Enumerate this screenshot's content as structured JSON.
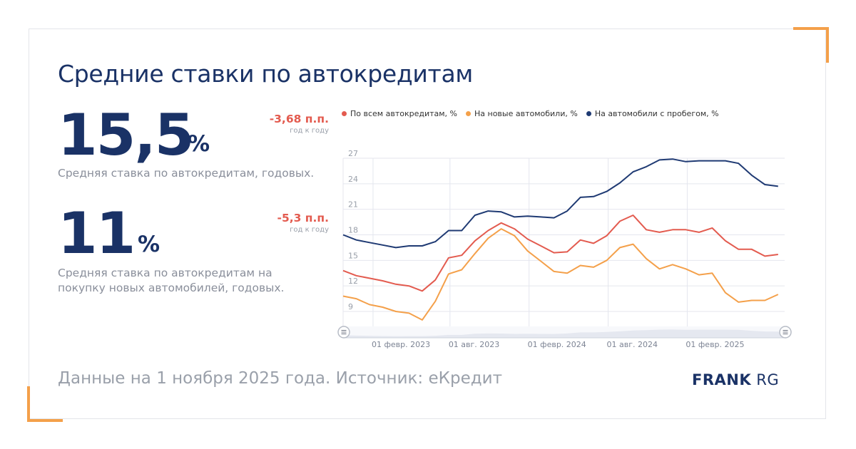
{
  "title": "Средние ставки по автокредитам",
  "stats": [
    {
      "value": "15,5",
      "unit": "%",
      "delta": "-3,68 п.п.",
      "period": "год к году",
      "description": "Средняя ставка по автокредитам, годовых."
    },
    {
      "value": "11",
      "unit": "%",
      "delta": "-5,3 п.п.",
      "period": "год к году",
      "description": "Средняя ставка по автокредитам на покупку новых автомобилей, годовых."
    }
  ],
  "footer": "Данные на 1 ноября 2025 года. Источник: еКредит",
  "logo": {
    "bold": "FRANK",
    "rest": " RG"
  },
  "colors": {
    "accent": "#f4a04a",
    "primary": "#1a3266",
    "red": "#e35b4f",
    "orange": "#f4a04a",
    "navy": "#1f3a73"
  },
  "chart_data": {
    "type": "line",
    "x_ticks": [
      "01 февр. 2023",
      "01 авг. 2023",
      "01 февр. 2024",
      "01 авг. 2024",
      "01 февр. 2025"
    ],
    "y_ticks": [
      "27",
      "24",
      "21",
      "18",
      "15",
      "12",
      "9"
    ],
    "ylim": [
      6.5,
      27.5
    ],
    "grid": true,
    "legend_position": "top",
    "x": [
      "2022-12",
      "2023-01",
      "2023-02",
      "2023-03",
      "2023-04",
      "2023-05",
      "2023-06",
      "2023-07",
      "2023-08",
      "2023-09",
      "2023-10",
      "2023-11",
      "2023-12",
      "2024-01",
      "2024-02",
      "2024-03",
      "2024-04",
      "2024-05",
      "2024-06",
      "2024-07",
      "2024-08",
      "2024-09",
      "2024-10",
      "2024-11",
      "2024-12",
      "2025-01",
      "2025-02",
      "2025-03",
      "2025-04",
      "2025-05",
      "2025-06",
      "2025-07",
      "2025-08",
      "2025-09",
      "2025-10"
    ],
    "series": [
      {
        "name": "По всем автокредитам, %",
        "color": "#e35b4f",
        "values": [
          13.8,
          13.2,
          12.9,
          12.6,
          12.2,
          12.0,
          11.4,
          12.7,
          15.3,
          15.6,
          17.3,
          18.5,
          19.4,
          18.7,
          17.5,
          16.7,
          15.9,
          16.0,
          17.4,
          17.0,
          17.9,
          19.6,
          20.3,
          18.6,
          18.3,
          18.6,
          18.6,
          18.3,
          18.8,
          17.3,
          16.3,
          16.3,
          15.5,
          15.7,
          null
        ]
      },
      {
        "name": "На новые автомобили, %",
        "color": "#f4a04a",
        "values": [
          10.8,
          10.5,
          9.8,
          9.5,
          9.0,
          8.8,
          8.0,
          10.2,
          13.4,
          13.9,
          15.8,
          17.6,
          18.7,
          17.9,
          16.1,
          14.9,
          13.7,
          13.5,
          14.4,
          14.2,
          15.0,
          16.5,
          16.9,
          15.2,
          14.0,
          14.5,
          14.0,
          13.3,
          13.5,
          11.2,
          10.1,
          10.3,
          10.3,
          11.0,
          null
        ]
      },
      {
        "name": "На автомобили с пробегом, %",
        "color": "#1f3a73",
        "values": [
          18.0,
          17.4,
          17.1,
          16.8,
          16.5,
          16.7,
          16.7,
          17.2,
          18.5,
          18.5,
          20.3,
          20.8,
          20.7,
          20.1,
          20.2,
          20.1,
          20.0,
          20.8,
          22.4,
          22.5,
          23.1,
          24.1,
          25.4,
          26.0,
          26.8,
          26.9,
          26.6,
          26.7,
          26.7,
          26.7,
          26.4,
          25.0,
          23.9,
          23.7,
          null
        ]
      }
    ]
  }
}
